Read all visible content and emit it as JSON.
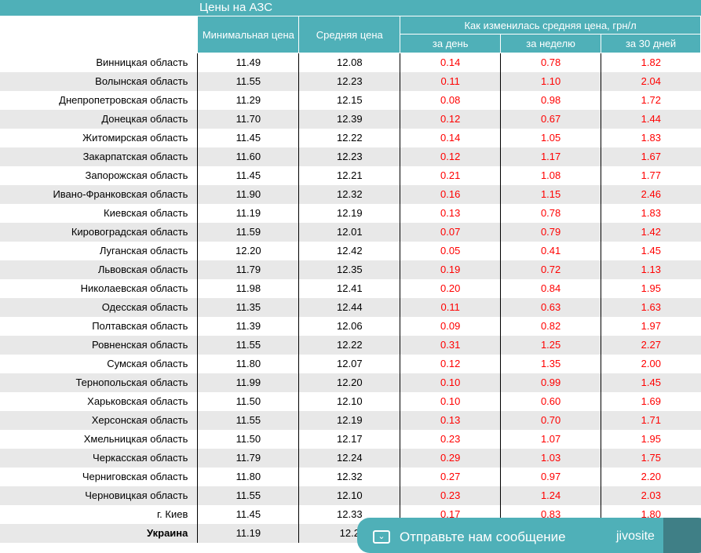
{
  "title": "Цены на АЗС",
  "headers": {
    "min": "Минимальная цена",
    "avg": "Средняя цена",
    "change": "Как изменилась средняя цена, грн/л",
    "day": "за день",
    "week": "за неделю",
    "month": "за 30 дней"
  },
  "rows": [
    [
      "Винницкая область",
      "11.49",
      "12.08",
      "0.14",
      "0.78",
      "1.82"
    ],
    [
      "Волынская область",
      "11.55",
      "12.23",
      "0.11",
      "1.10",
      "2.04"
    ],
    [
      "Днепропетровская область",
      "11.29",
      "12.15",
      "0.08",
      "0.98",
      "1.72"
    ],
    [
      "Донецкая область",
      "11.70",
      "12.39",
      "0.12",
      "0.67",
      "1.44"
    ],
    [
      "Житомирская область",
      "11.45",
      "12.22",
      "0.14",
      "1.05",
      "1.83"
    ],
    [
      "Закарпатская область",
      "11.60",
      "12.23",
      "0.12",
      "1.17",
      "1.67"
    ],
    [
      "Запорожская область",
      "11.45",
      "12.21",
      "0.21",
      "1.08",
      "1.77"
    ],
    [
      "Ивано-Франковская область",
      "11.90",
      "12.32",
      "0.16",
      "1.15",
      "2.46"
    ],
    [
      "Киевская область",
      "11.19",
      "12.19",
      "0.13",
      "0.78",
      "1.83"
    ],
    [
      "Кировоградская область",
      "11.59",
      "12.01",
      "0.07",
      "0.79",
      "1.42"
    ],
    [
      "Луганская область",
      "12.20",
      "12.42",
      "0.05",
      "0.41",
      "1.45"
    ],
    [
      "Львовская область",
      "11.79",
      "12.35",
      "0.19",
      "0.72",
      "1.13"
    ],
    [
      "Николаевская область",
      "11.98",
      "12.41",
      "0.20",
      "0.84",
      "1.95"
    ],
    [
      "Одесская область",
      "11.35",
      "12.44",
      "0.11",
      "0.63",
      "1.63"
    ],
    [
      "Полтавская область",
      "11.39",
      "12.06",
      "0.09",
      "0.82",
      "1.97"
    ],
    [
      "Ровненская область",
      "11.55",
      "12.22",
      "0.31",
      "1.25",
      "2.27"
    ],
    [
      "Сумская область",
      "11.80",
      "12.07",
      "0.12",
      "1.35",
      "2.00"
    ],
    [
      "Тернопольская область",
      "11.99",
      "12.20",
      "0.10",
      "0.99",
      "1.45"
    ],
    [
      "Харьковская область",
      "11.50",
      "12.10",
      "0.10",
      "0.60",
      "1.69"
    ],
    [
      "Херсонская область",
      "11.55",
      "12.19",
      "0.13",
      "0.70",
      "1.71"
    ],
    [
      "Хмельницкая область",
      "11.50",
      "12.17",
      "0.23",
      "1.07",
      "1.95"
    ],
    [
      "Черкасская область",
      "11.79",
      "12.24",
      "0.29",
      "1.03",
      "1.75"
    ],
    [
      "Черниговская область",
      "11.80",
      "12.32",
      "0.27",
      "0.97",
      "2.20"
    ],
    [
      "Черновицкая область",
      "11.55",
      "12.10",
      "0.23",
      "1.24",
      "2.03"
    ],
    [
      "г. Киев",
      "11.45",
      "12.33",
      "0.17",
      "0.83",
      "1.80"
    ],
    [
      "Украина",
      "11.19",
      "12.2",
      "",
      "",
      ""
    ]
  ],
  "chat": {
    "label": "Отправьте нам сообщение",
    "brand": "jivosite",
    "icon": "chat-icon"
  },
  "colors": {
    "header": "#4fb0b8",
    "change": "#ff0000",
    "stripe": "#e8e8e8"
  }
}
